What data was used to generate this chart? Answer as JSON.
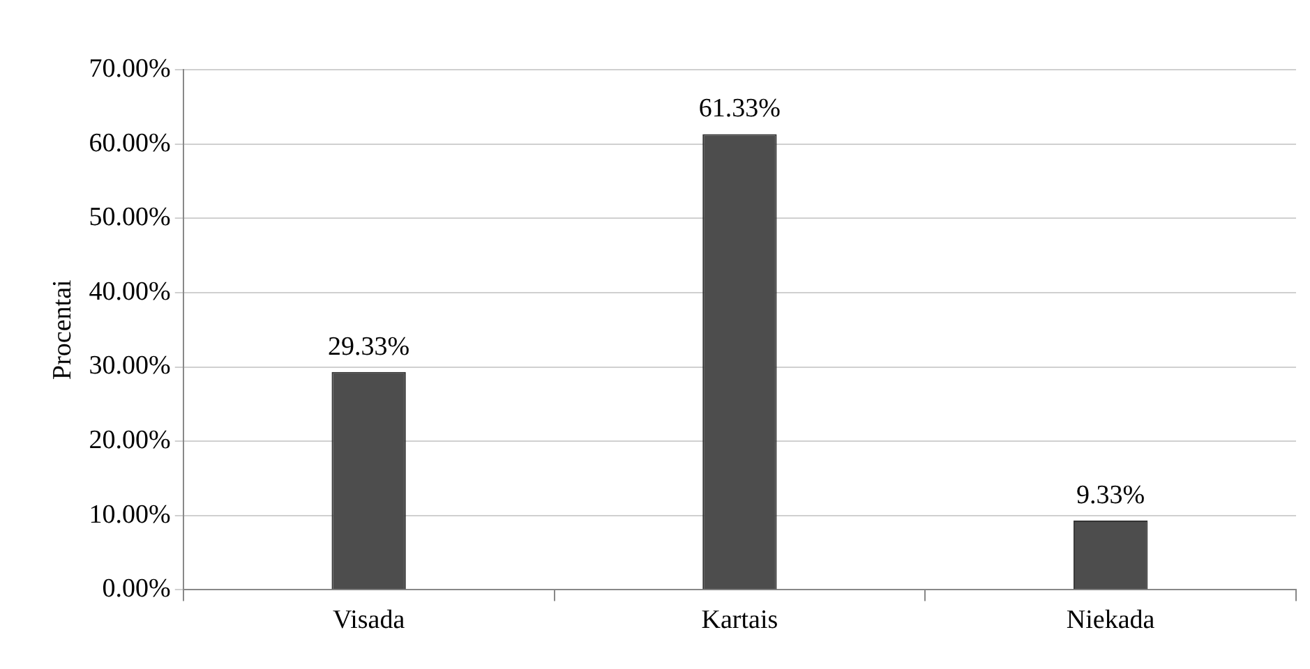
{
  "chart_data": {
    "type": "bar",
    "ylabel": "Procentai",
    "categories": [
      "Visada",
      "Kartais",
      "Niekada"
    ],
    "values": [
      29.33,
      61.33,
      9.33
    ],
    "color": "#4d4d4d",
    "value_labels": [
      "29.33%",
      "61.33%",
      "9.33%"
    ],
    "ylim": [
      0,
      70
    ],
    "yticks": [
      {
        "value": 0,
        "label": "0.00%"
      },
      {
        "value": 10,
        "label": "10.00%"
      },
      {
        "value": 20,
        "label": "20.00%"
      },
      {
        "value": 30,
        "label": "30.00%"
      },
      {
        "value": 40,
        "label": "40.00%"
      },
      {
        "value": 50,
        "label": "50.00%"
      },
      {
        "value": 60,
        "label": "60.00%"
      },
      {
        "value": 70,
        "label": "70.00%"
      }
    ],
    "grid": "y",
    "legend": false
  }
}
